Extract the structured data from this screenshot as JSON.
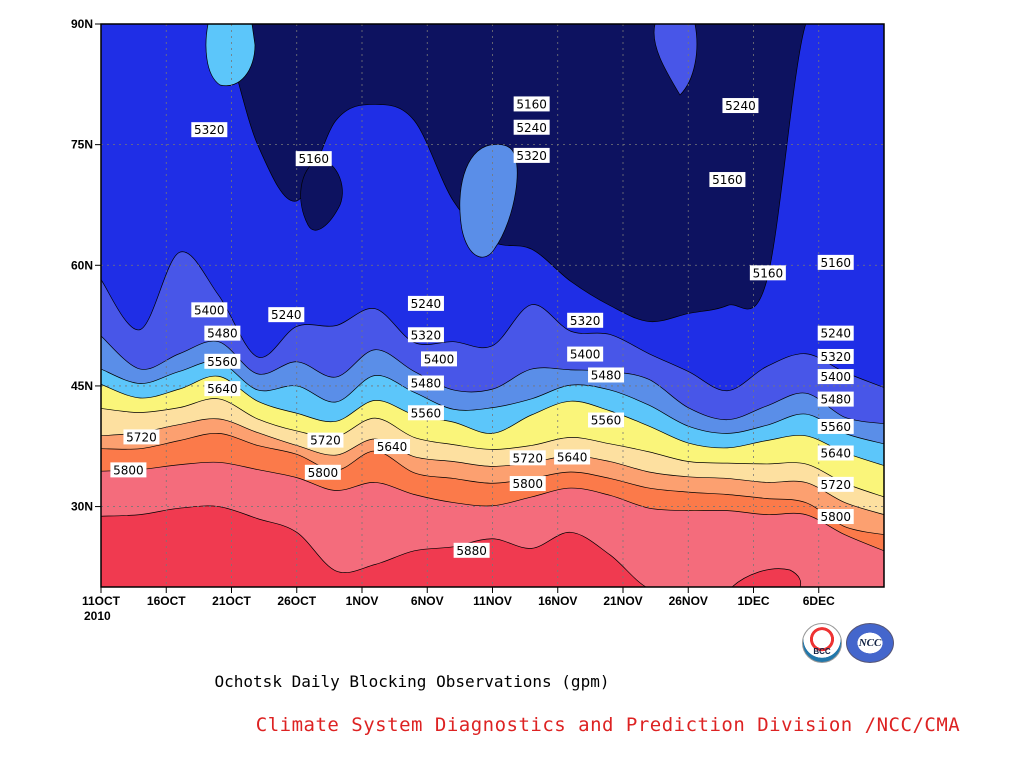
{
  "chart_data": {
    "type": "contour",
    "title": "Ochotsk Daily Blocking Observations (gpm)",
    "subtitle": "Climate System Diagnostics and Prediction Division /NCC/CMA",
    "variable_unit": "gpm",
    "x_ticks": [
      "11OCT",
      "16OCT",
      "21OCT",
      "26OCT",
      "1NOV",
      "6NOV",
      "11NOV",
      "16NOV",
      "21NOV",
      "26NOV",
      "1DEC",
      "6DEC"
    ],
    "x_year_label": "2010",
    "x_range_days": [
      0,
      60
    ],
    "y_ticks": [
      "30N",
      "45N",
      "60N",
      "75N",
      "90N"
    ],
    "y_range_lat": [
      20,
      90
    ],
    "grid": true,
    "contour_levels": [
      5160,
      5240,
      5320,
      5400,
      5480,
      5560,
      5640,
      5720,
      5800,
      5880
    ],
    "fill_colors": [
      "#0d1260",
      "#1f2ee6",
      "#4856e8",
      "#5a8ee8",
      "#5cc6fa",
      "#faf57a",
      "#fde0a0",
      "#fca070",
      "#fb7a4a",
      "#f46c7c",
      "#f03a50"
    ],
    "x_days": [
      0,
      3,
      6,
      9,
      12,
      15,
      18,
      21,
      24,
      27,
      30,
      33,
      36,
      39,
      42,
      45,
      48,
      51,
      54,
      57,
      60
    ],
    "lines": [
      {
        "level": 5880,
        "lat": [
          28.8,
          29.0,
          29.8,
          30.0,
          28.5,
          26.8,
          22.0,
          22.8,
          24.5,
          25.0,
          26.0,
          24.8,
          26.8,
          24.0,
          19.8,
          19.8,
          19.8,
          19.8,
          19.8,
          19.8,
          19.8
        ]
      },
      {
        "level": 5800,
        "lat": [
          34.4,
          34.6,
          35.2,
          35.5,
          34.6,
          33.6,
          32.0,
          33.0,
          31.5,
          30.5,
          30.1,
          31.2,
          32.3,
          31.4,
          29.8,
          29.5,
          29.5,
          29.0,
          29.0,
          26.5,
          24.5
        ]
      },
      {
        "level": 5720,
        "lat": [
          37.2,
          37.2,
          38.2,
          39.1,
          37.6,
          36.5,
          34.5,
          36.9,
          34.2,
          33.5,
          32.9,
          33.5,
          34.3,
          33.5,
          32.3,
          31.8,
          31.5,
          31.0,
          30.5,
          27.5,
          26.5
        ]
      },
      {
        "level": 5640,
        "lat": [
          38.8,
          39.2,
          40.2,
          40.9,
          39.2,
          37.6,
          36.4,
          38.4,
          36.2,
          35.6,
          35.0,
          35.5,
          36.3,
          35.6,
          34.3,
          33.7,
          33.5,
          33.0,
          33.0,
          30.5,
          29.0
        ]
      },
      {
        "level": 5560,
        "lat": [
          42.2,
          41.7,
          42.3,
          43.4,
          40.9,
          39.4,
          38.7,
          41.0,
          38.6,
          37.7,
          37.1,
          37.6,
          38.6,
          37.8,
          36.8,
          35.6,
          35.4,
          35.3,
          35.3,
          32.9,
          31.2
        ]
      },
      {
        "level": 5480,
        "lat": [
          45.2,
          43.5,
          44.6,
          46.2,
          43.1,
          41.6,
          40.6,
          43.2,
          41.4,
          40.5,
          39.1,
          41.4,
          43.1,
          41.9,
          40.0,
          37.9,
          37.3,
          38.2,
          38.8,
          36.7,
          35.1
        ]
      },
      {
        "level": 5400,
        "lat": [
          47.1,
          45.3,
          46.8,
          48.0,
          44.5,
          45.0,
          43.0,
          46.3,
          44.2,
          42.1,
          42.3,
          43.4,
          45.1,
          44.5,
          42.6,
          40.0,
          39.1,
          40.1,
          41.5,
          39.1,
          37.8
        ]
      },
      {
        "level": 5320,
        "lat": [
          51.2,
          47.1,
          49.0,
          50.5,
          46.5,
          48.0,
          46.1,
          49.5,
          46.8,
          44.5,
          44.6,
          47.1,
          47.0,
          46.8,
          45.8,
          42.3,
          40.8,
          42.5,
          44.1,
          41.1,
          40.3
        ]
      },
      {
        "level": 5240,
        "lat": [
          58.2,
          52.0,
          61.6,
          56.3,
          48.6,
          52.4,
          52.5,
          54.6,
          50.4,
          50.5,
          50.0,
          55.1,
          51.8,
          51.4,
          49.0,
          46.8,
          44.4,
          47.4,
          49.0,
          46.7,
          44.8
        ]
      }
    ],
    "labels": [
      {
        "text": "5160",
        "day": 33.0,
        "lat": 80.0
      },
      {
        "text": "5240",
        "day": 33.0,
        "lat": 77.1
      },
      {
        "text": "5320",
        "day": 33.0,
        "lat": 73.6
      },
      {
        "text": "5240",
        "day": 49.0,
        "lat": 79.8
      },
      {
        "text": "5160",
        "day": 48.0,
        "lat": 70.6
      },
      {
        "text": "5320",
        "day": 8.3,
        "lat": 76.8
      },
      {
        "text": "5160",
        "day": 16.3,
        "lat": 73.2
      },
      {
        "text": "5160",
        "day": 51.1,
        "lat": 59.0
      },
      {
        "text": "5160",
        "day": 56.3,
        "lat": 60.3
      },
      {
        "text": "5240",
        "day": 14.2,
        "lat": 53.8
      },
      {
        "text": "5240",
        "day": 24.9,
        "lat": 55.2
      },
      {
        "text": "5400",
        "day": 8.3,
        "lat": 54.4
      },
      {
        "text": "5480",
        "day": 9.3,
        "lat": 51.5
      },
      {
        "text": "5560",
        "day": 9.3,
        "lat": 48.0
      },
      {
        "text": "5640",
        "day": 9.3,
        "lat": 44.6
      },
      {
        "text": "5320",
        "day": 24.9,
        "lat": 51.3
      },
      {
        "text": "5400",
        "day": 25.9,
        "lat": 48.3
      },
      {
        "text": "5480",
        "day": 24.9,
        "lat": 45.3
      },
      {
        "text": "5560",
        "day": 24.9,
        "lat": 41.6
      },
      {
        "text": "5640",
        "day": 22.3,
        "lat": 37.4
      },
      {
        "text": "5720",
        "day": 17.2,
        "lat": 38.2
      },
      {
        "text": "5800",
        "day": 17.0,
        "lat": 34.2
      },
      {
        "text": "5720",
        "day": 3.1,
        "lat": 38.6
      },
      {
        "text": "5800",
        "day": 2.1,
        "lat": 34.5
      },
      {
        "text": "5320",
        "day": 37.1,
        "lat": 53.1
      },
      {
        "text": "5400",
        "day": 37.1,
        "lat": 48.9
      },
      {
        "text": "5480",
        "day": 38.7,
        "lat": 46.3
      },
      {
        "text": "5560",
        "day": 38.7,
        "lat": 40.7
      },
      {
        "text": "5640",
        "day": 36.1,
        "lat": 36.1
      },
      {
        "text": "5720",
        "day": 32.7,
        "lat": 36.0
      },
      {
        "text": "5800",
        "day": 32.7,
        "lat": 32.8
      },
      {
        "text": "5880",
        "day": 28.4,
        "lat": 24.5
      },
      {
        "text": "5240",
        "day": 56.3,
        "lat": 51.5
      },
      {
        "text": "5320",
        "day": 56.3,
        "lat": 48.6
      },
      {
        "text": "5400",
        "day": 56.3,
        "lat": 46.1
      },
      {
        "text": "5480",
        "day": 56.3,
        "lat": 43.3
      },
      {
        "text": "5560",
        "day": 56.3,
        "lat": 39.9
      },
      {
        "text": "5640",
        "day": 56.3,
        "lat": 36.6
      },
      {
        "text": "5720",
        "day": 56.3,
        "lat": 32.7
      },
      {
        "text": "5800",
        "day": 56.3,
        "lat": 28.7
      }
    ]
  },
  "logos": {
    "bcc_text": "BCC",
    "ncc_text": "NCC"
  }
}
